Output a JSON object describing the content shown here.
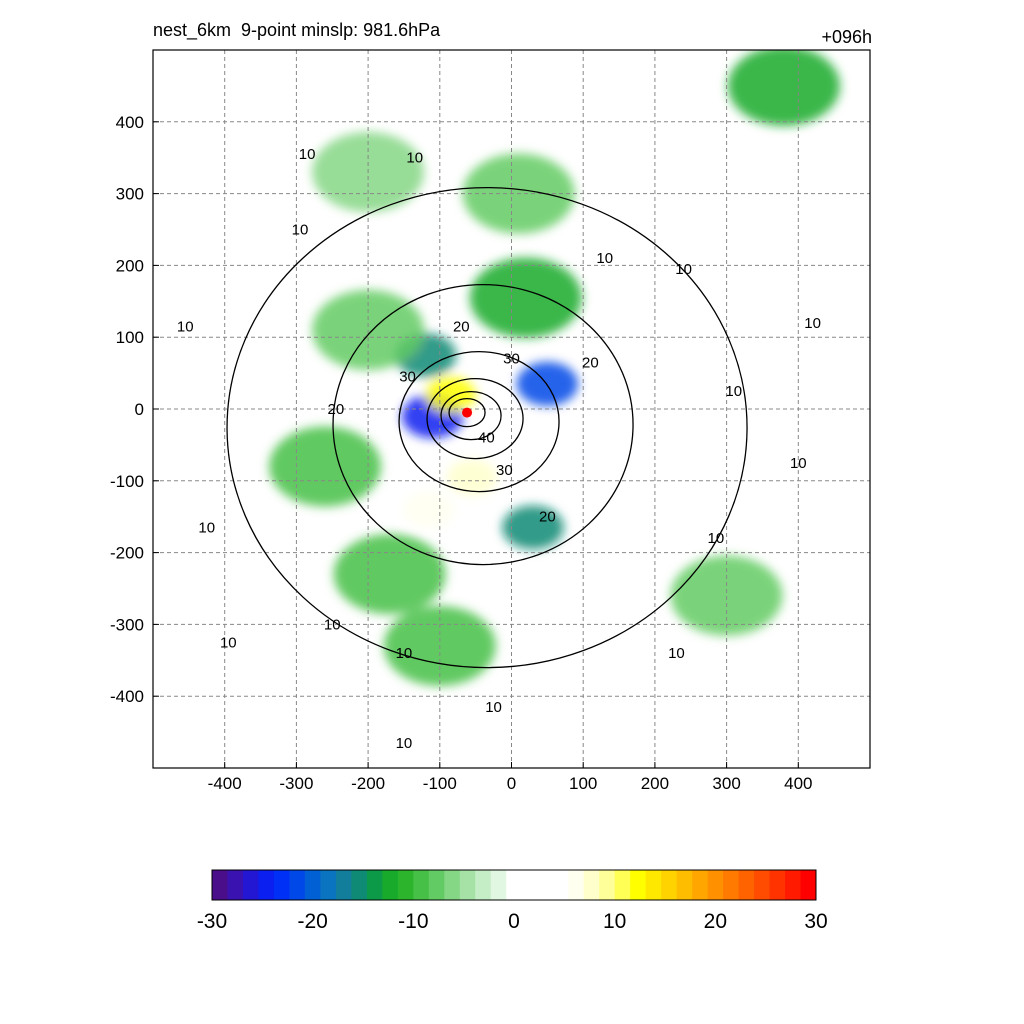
{
  "figure": {
    "title_left": "nest_6km  9-point minslp: 981.6hPa",
    "title_right": "+096h"
  },
  "chart_data": {
    "type": "heatmap",
    "title": "nest_6km  9-point minslp: 981.6hPa",
    "forecast_hour": "+096h",
    "xlabel": "",
    "ylabel": "",
    "xlim": [
      -500,
      500
    ],
    "ylim": [
      -500,
      500
    ],
    "x_ticks": [
      -400,
      -300,
      -200,
      -100,
      0,
      100,
      200,
      300,
      400
    ],
    "y_ticks": [
      400,
      300,
      200,
      100,
      0,
      -100,
      -200,
      -300,
      -400
    ],
    "grid": true,
    "colorbar": {
      "min": -30,
      "max": 30,
      "ticks": [
        -30,
        -20,
        -10,
        0,
        10,
        20,
        30
      ],
      "placement": "bottom",
      "colors": [
        "#4b0e8a",
        "#3a12b0",
        "#2417d4",
        "#0b1ff0",
        "#0030f5",
        "#0048e8",
        "#0060d4",
        "#0a74c0",
        "#127e9c",
        "#0f8a74",
        "#0c9a48",
        "#18aa2a",
        "#2cb52c",
        "#47c047",
        "#63cb63",
        "#85d685",
        "#a6e2a6",
        "#c6eec6",
        "#e2f7e2",
        "#ffffff",
        "#ffffff",
        "#ffffff",
        "#ffffff",
        "#fffff0",
        "#ffffcc",
        "#ffff99",
        "#ffff55",
        "#ffff00",
        "#ffe800",
        "#ffd300",
        "#ffbd00",
        "#ffa700",
        "#ff9100",
        "#ff7a00",
        "#ff6300",
        "#ff4c00",
        "#ff3300",
        "#ff1a00",
        "#ff0000"
      ]
    },
    "center_marker": {
      "x": -62,
      "y": -5,
      "color": "#ff0000"
    },
    "field_features": [
      {
        "label": "negative core band",
        "x": 50,
        "y": 35,
        "value": -22
      },
      {
        "label": "negative core band",
        "x": -110,
        "y": -10,
        "value": -24
      },
      {
        "label": "positive inner band",
        "x": -85,
        "y": 20,
        "value": 12
      },
      {
        "label": "positive inner band",
        "x": -55,
        "y": -95,
        "value": 8
      },
      {
        "label": "positive inner band",
        "x": -115,
        "y": -140,
        "value": 6
      },
      {
        "label": "negative outer ring",
        "x": 30,
        "y": -165,
        "value": -15
      },
      {
        "label": "negative outer ring",
        "x": -120,
        "y": 75,
        "value": -15
      },
      {
        "label": "negative outer ring",
        "x": 20,
        "y": 155,
        "value": -12
      },
      {
        "label": "negative spiral band",
        "x": -200,
        "y": 110,
        "value": -8
      },
      {
        "label": "negative spiral band",
        "x": -260,
        "y": -80,
        "value": -10
      },
      {
        "label": "negative spiral band",
        "x": -170,
        "y": -230,
        "value": -9
      },
      {
        "label": "negative spiral band",
        "x": -100,
        "y": -330,
        "value": -9
      },
      {
        "label": "negative spiral band",
        "x": 300,
        "y": -260,
        "value": -8
      },
      {
        "label": "negative spiral band",
        "x": 380,
        "y": 450,
        "value": -12
      },
      {
        "label": "negative spiral band",
        "x": 10,
        "y": 300,
        "value": -7
      },
      {
        "label": "negative spiral band",
        "x": -200,
        "y": 330,
        "value": -6
      }
    ],
    "contours": {
      "line_color": "#000000",
      "levels": [
        10,
        20,
        30,
        40
      ],
      "labels": [
        {
          "text": "10",
          "x": -285,
          "y": 355
        },
        {
          "text": "10",
          "x": -135,
          "y": 350
        },
        {
          "text": "10",
          "x": -295,
          "y": 250
        },
        {
          "text": "10",
          "x": -455,
          "y": 115
        },
        {
          "text": "10",
          "x": 130,
          "y": 210
        },
        {
          "text": "10",
          "x": 240,
          "y": 195
        },
        {
          "text": "10",
          "x": 420,
          "y": 120
        },
        {
          "text": "10",
          "x": 310,
          "y": 25
        },
        {
          "text": "10",
          "x": 400,
          "y": -75
        },
        {
          "text": "10",
          "x": 285,
          "y": -180
        },
        {
          "text": "10",
          "x": -425,
          "y": -165
        },
        {
          "text": "10",
          "x": -395,
          "y": -325
        },
        {
          "text": "10",
          "x": -250,
          "y": -300
        },
        {
          "text": "10",
          "x": -150,
          "y": -340
        },
        {
          "text": "10",
          "x": -25,
          "y": -415
        },
        {
          "text": "10",
          "x": -150,
          "y": -465
        },
        {
          "text": "10",
          "x": 230,
          "y": -340
        },
        {
          "text": "20",
          "x": -70,
          "y": 115
        },
        {
          "text": "20",
          "x": 110,
          "y": 65
        },
        {
          "text": "20",
          "x": -245,
          "y": 0
        },
        {
          "text": "20",
          "x": 50,
          "y": -150
        },
        {
          "text": "30",
          "x": 0,
          "y": 70
        },
        {
          "text": "30",
          "x": -145,
          "y": 45
        },
        {
          "text": "30",
          "x": -10,
          "y": -85
        },
        {
          "text": "40",
          "x": -35,
          "y": -40
        }
      ]
    }
  }
}
